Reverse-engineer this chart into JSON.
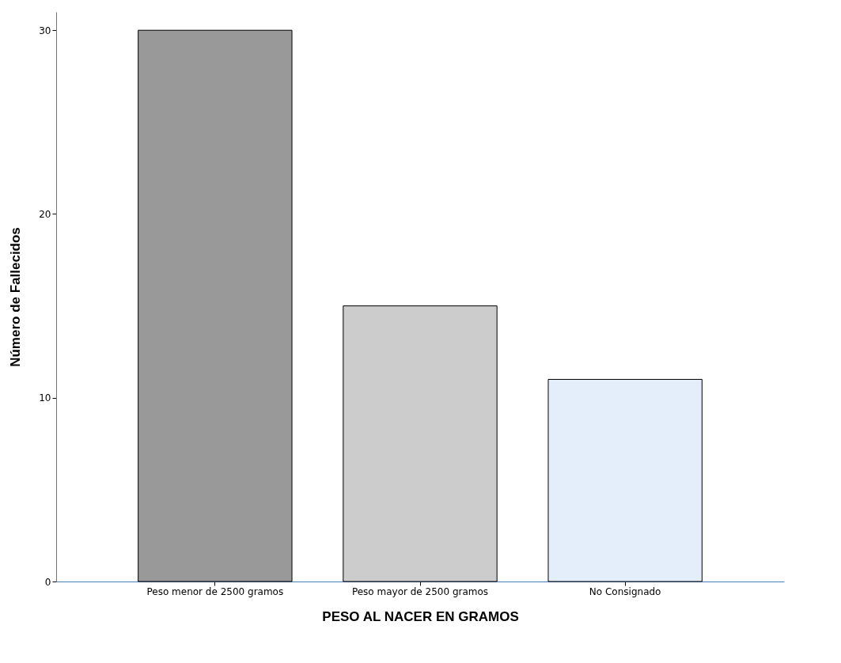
{
  "chart_data": {
    "type": "bar",
    "xlabel": "PESO AL NACER EN GRAMOS",
    "ylabel": "Número de Fallecidos",
    "categories": [
      "Peso menor de 2500 gramos",
      "Peso mayor de 2500 gramos",
      "No Consignado"
    ],
    "values": [
      30,
      15,
      11
    ],
    "colors": [
      "#999999",
      "#cccccc",
      "#e3eefa"
    ],
    "ylim": [
      0,
      31
    ],
    "yticks": [
      0,
      10,
      20,
      30
    ],
    "grid": false
  }
}
